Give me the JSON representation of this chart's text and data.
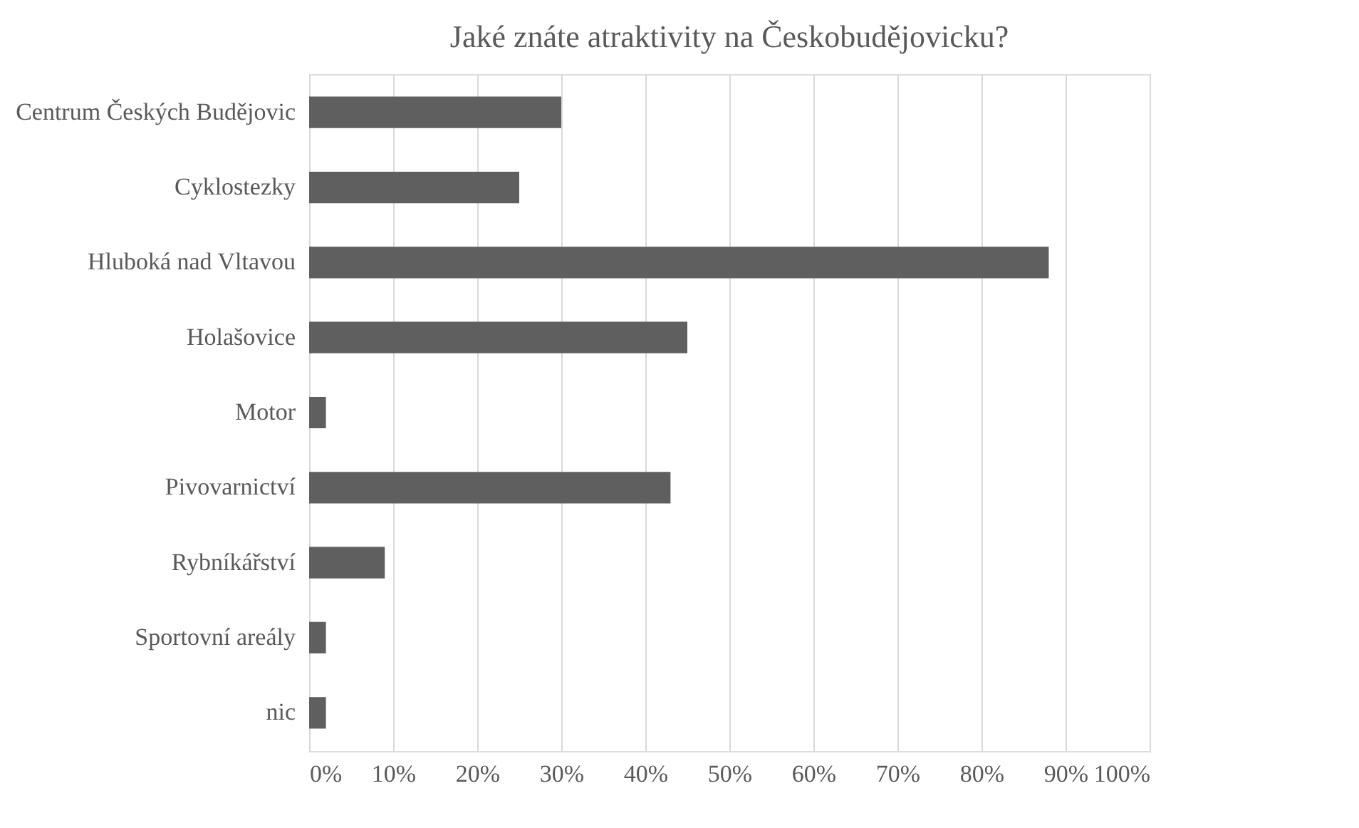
{
  "chart_data": {
    "type": "bar",
    "orientation": "horizontal",
    "title": "Jaké znáte atraktivity na Českobudějovicku?",
    "categories": [
      "Centrum Českých Budějovic",
      "Cyklostezky",
      "Hluboká nad Vltavou",
      "Holašovice",
      "Motor",
      "Pivovarnictví",
      "Rybníkářství",
      "Sportovní areály",
      "nic"
    ],
    "values": [
      30,
      25,
      88,
      45,
      2,
      43,
      9,
      2,
      2
    ],
    "color": "#5f5f5f",
    "xlim": [
      0,
      100
    ],
    "xticks": [
      {
        "value": 0,
        "label": "0%"
      },
      {
        "value": 10,
        "label": "10%"
      },
      {
        "value": 20,
        "label": "20%"
      },
      {
        "value": 30,
        "label": "30%"
      },
      {
        "value": 40,
        "label": "40%"
      },
      {
        "value": 50,
        "label": "50%"
      },
      {
        "value": 60,
        "label": "60%"
      },
      {
        "value": 70,
        "label": "70%"
      },
      {
        "value": 80,
        "label": "80%"
      },
      {
        "value": 90,
        "label": "90%"
      },
      {
        "value": 100,
        "label": "100%"
      }
    ],
    "grid": "x"
  }
}
